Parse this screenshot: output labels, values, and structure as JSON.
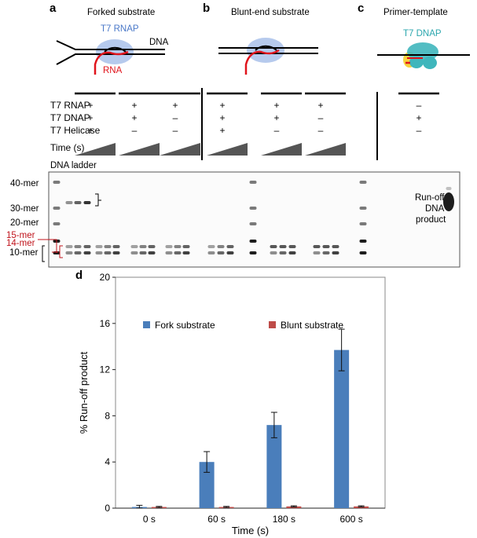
{
  "panels": {
    "a": {
      "letter": "a",
      "title": "Forked substrate",
      "rnap_label": "T7 RNAP",
      "dna_label": "DNA",
      "rna_label": "RNA"
    },
    "b": {
      "letter": "b",
      "title": "Blunt-end substrate"
    },
    "c": {
      "letter": "c",
      "title": "Primer-template",
      "dnap_label": "T7 DNAP"
    }
  },
  "conditions": {
    "row_labels": [
      "T7 RNAP",
      "T7 DNAP",
      "T7 Helicase",
      "Time (s)"
    ],
    "groups": [
      {
        "rnap": "+",
        "dnap": "+",
        "helicase": "+"
      },
      {
        "rnap": "+",
        "dnap": "+",
        "helicase": "–"
      },
      {
        "rnap": "+",
        "dnap": "–",
        "helicase": "–"
      },
      {
        "rnap": "+",
        "dnap": "+",
        "helicase": "+"
      },
      {
        "rnap": "+",
        "dnap": "+",
        "helicase": "–"
      },
      {
        "rnap": "+",
        "dnap": "–",
        "helicase": "–"
      },
      {
        "rnap": "–",
        "dnap": "+",
        "helicase": "–"
      }
    ]
  },
  "gel": {
    "ladder_title": "DNA ladder",
    "markers": [
      "40-mer",
      "30-mer",
      "20-mer",
      "15-mer",
      "14-mer",
      "10-mer"
    ],
    "runoff_label": [
      "Run-off",
      "DNA",
      "product"
    ]
  },
  "chart_data": {
    "panel_letter": "d",
    "type": "bar",
    "categories": [
      "0 s",
      "60 s",
      "180 s",
      "600 s"
    ],
    "series": [
      {
        "name": "Fork substrate",
        "color": "#4a7ebb",
        "values": [
          0.1,
          4.0,
          7.2,
          13.7
        ],
        "errors": [
          0.15,
          0.9,
          1.1,
          1.8
        ]
      },
      {
        "name": "Blunt substrate",
        "color": "#be4b48",
        "values": [
          0.1,
          0.1,
          0.15,
          0.15
        ],
        "errors": [
          0.05,
          0.05,
          0.05,
          0.05
        ]
      }
    ],
    "xlabel": "Time (s)",
    "ylabel": "% Run-off product",
    "ylim": [
      0,
      20
    ],
    "yticks": [
      0,
      4,
      8,
      12,
      16,
      20
    ],
    "legend_position": "top-left"
  }
}
